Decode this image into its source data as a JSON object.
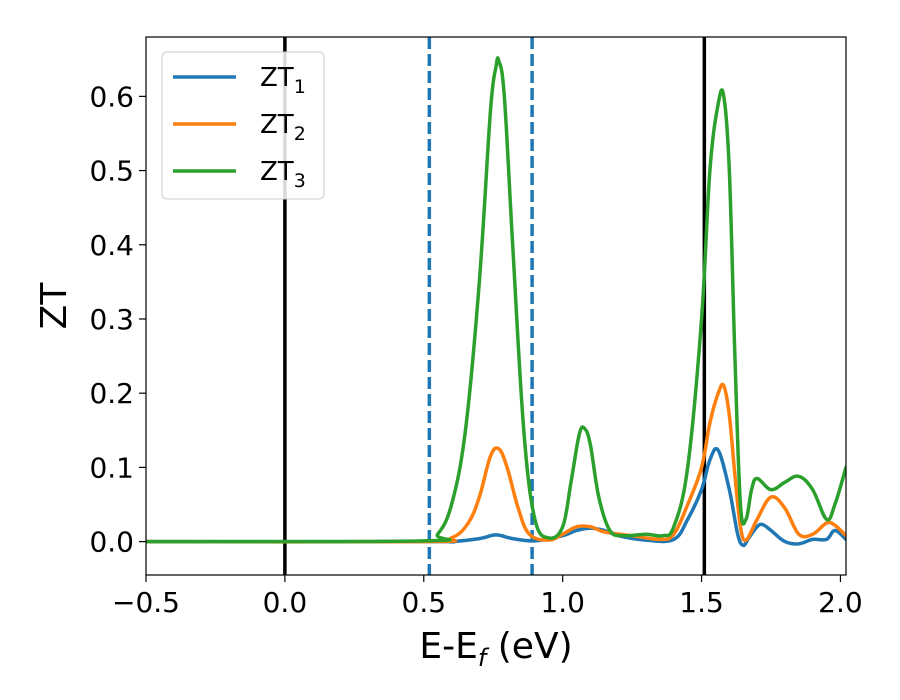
{
  "chart_data": {
    "type": "line",
    "title": "",
    "xlabel": "E-E",
    "xlabel_sub": "f",
    "xlabel_unit": " (eV)",
    "ylabel": "ZT",
    "xlim": [
      -0.5,
      2.02
    ],
    "ylim": [
      -0.045,
      0.68
    ],
    "xticks": [
      -0.5,
      0.0,
      0.5,
      1.0,
      1.5,
      2.0
    ],
    "xtick_labels": [
      "−0.5",
      "0.0",
      "0.5",
      "1.0",
      "1.5",
      "2.0"
    ],
    "yticks": [
      0.0,
      0.1,
      0.2,
      0.3,
      0.4,
      0.5,
      0.6
    ],
    "ytick_labels": [
      "0.0",
      "0.1",
      "0.2",
      "0.3",
      "0.4",
      "0.5",
      "0.6"
    ],
    "grid": false,
    "legend_position": "top-left",
    "vlines": [
      {
        "x": 0.0,
        "style": "solid",
        "color": "#000000"
      },
      {
        "x": 0.52,
        "style": "dashed",
        "color": "#1f77b4"
      },
      {
        "x": 0.89,
        "style": "dashed",
        "color": "#1f77b4"
      },
      {
        "x": 1.51,
        "style": "solid",
        "color": "#000000"
      }
    ],
    "series": [
      {
        "name": "ZT",
        "name_sub": "1",
        "color": "#1f77b4",
        "x": [
          -0.5,
          0.5,
          0.6,
          0.7,
          0.76,
          0.82,
          0.9,
          1.0,
          1.05,
          1.1,
          1.15,
          1.2,
          1.3,
          1.4,
          1.45,
          1.5,
          1.53,
          1.56,
          1.6,
          1.63,
          1.65,
          1.67,
          1.7,
          1.72,
          1.75,
          1.8,
          1.85,
          1.9,
          1.95,
          1.98,
          2.02
        ],
        "y": [
          0.0,
          0.0,
          0.0,
          0.004,
          0.009,
          0.004,
          0.001,
          0.008,
          0.015,
          0.018,
          0.015,
          0.008,
          0.002,
          0.003,
          0.03,
          0.07,
          0.11,
          0.123,
          0.07,
          0.01,
          -0.005,
          0.005,
          0.02,
          0.023,
          0.015,
          0.0,
          -0.003,
          0.003,
          0.003,
          0.015,
          0.003
        ]
      },
      {
        "name": "ZT",
        "name_sub": "2",
        "color": "#ff7f0e",
        "x": [
          -0.5,
          0.5,
          0.6,
          0.66,
          0.7,
          0.74,
          0.77,
          0.8,
          0.84,
          0.88,
          0.95,
          1.0,
          1.05,
          1.1,
          1.15,
          1.25,
          1.35,
          1.4,
          1.45,
          1.5,
          1.53,
          1.56,
          1.58,
          1.6,
          1.62,
          1.64,
          1.66,
          1.7,
          1.75,
          1.8,
          1.85,
          1.9,
          1.95,
          1.98,
          2.02
        ],
        "y": [
          0.0,
          0.0,
          0.005,
          0.025,
          0.06,
          0.115,
          0.125,
          0.1,
          0.045,
          0.01,
          0.002,
          0.01,
          0.02,
          0.02,
          0.013,
          0.008,
          0.003,
          0.01,
          0.05,
          0.1,
          0.16,
          0.2,
          0.21,
          0.17,
          0.09,
          0.02,
          0.002,
          0.03,
          0.06,
          0.045,
          0.01,
          0.01,
          0.025,
          0.022,
          0.008
        ]
      },
      {
        "name": "ZT",
        "name_sub": "3",
        "color": "#2ca02c",
        "x": [
          -0.5,
          0.5,
          0.55,
          0.6,
          0.65,
          0.7,
          0.74,
          0.76,
          0.77,
          0.79,
          0.82,
          0.86,
          0.9,
          0.95,
          1.0,
          1.03,
          1.06,
          1.08,
          1.1,
          1.13,
          1.17,
          1.22,
          1.3,
          1.36,
          1.4,
          1.45,
          1.5,
          1.53,
          1.56,
          1.58,
          1.6,
          1.62,
          1.64,
          1.66,
          1.68,
          1.7,
          1.75,
          1.8,
          1.85,
          1.9,
          1.95,
          1.98,
          2.02
        ],
        "y": [
          0.0,
          0.001,
          0.01,
          0.05,
          0.15,
          0.35,
          0.58,
          0.64,
          0.648,
          0.6,
          0.4,
          0.15,
          0.03,
          0.005,
          0.02,
          0.08,
          0.145,
          0.152,
          0.13,
          0.06,
          0.015,
          0.008,
          0.01,
          0.008,
          0.02,
          0.1,
          0.3,
          0.5,
          0.59,
          0.6,
          0.5,
          0.25,
          0.05,
          0.03,
          0.07,
          0.085,
          0.07,
          0.08,
          0.088,
          0.07,
          0.03,
          0.05,
          0.1
        ]
      }
    ]
  }
}
